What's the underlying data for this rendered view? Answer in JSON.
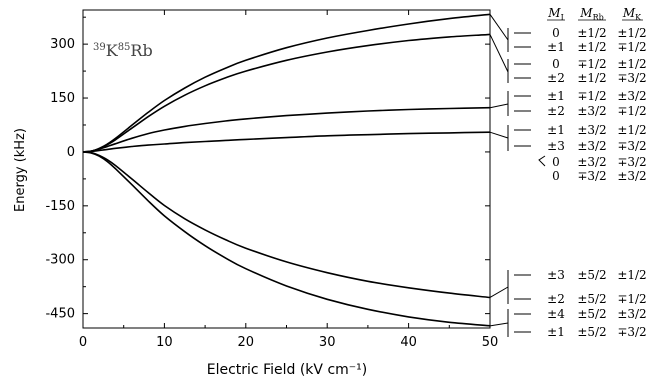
{
  "chart_data": {
    "type": "line",
    "xlabel": "Electric Field (kV cm⁻¹)",
    "ylabel": "Energy (kHz)",
    "xlim": [
      0,
      50
    ],
    "ylim": [
      -490,
      395
    ],
    "xticks": [
      "0",
      "10",
      "20",
      "30",
      "40",
      "50"
    ],
    "yticks": [
      {
        "value": 300,
        "label": "300"
      },
      {
        "value": 150,
        "label": "150"
      },
      {
        "value": 0,
        "label": "0"
      },
      {
        "value": -150,
        "label": "-150"
      },
      {
        "value": -300,
        "label": "-300"
      },
      {
        "value": -450,
        "label": "-450"
      }
    ],
    "annotation": {
      "sup1": "39",
      "base1": "K",
      "sup2": "85",
      "base2": "Rb"
    },
    "x": [
      0,
      1,
      2,
      3,
      4,
      6,
      8,
      10,
      12.5,
      15,
      17.5,
      20,
      25,
      30,
      35,
      40,
      45,
      50
    ],
    "series": [
      {
        "values": [
          0,
          2,
          10,
          22,
          38,
          74,
          110,
          143,
          178,
          208,
          233,
          255,
          290,
          317,
          338,
          356,
          371,
          383
        ]
      },
      {
        "values": [
          0,
          2,
          9,
          20,
          34,
          66,
          98,
          127,
          158,
          184,
          206,
          225,
          255,
          278,
          296,
          310,
          320,
          327
        ]
      },
      {
        "values": [
          0,
          2,
          8,
          15,
          23,
          38,
          51,
          61,
          71,
          79,
          86,
          92,
          101,
          108,
          114,
          118,
          121,
          123
        ]
      },
      {
        "values": [
          0,
          1,
          4,
          7,
          10,
          15,
          19,
          22,
          26,
          29,
          32,
          35,
          40,
          45,
          48,
          51,
          53,
          55
        ]
      },
      {
        "values": [
          0,
          -2,
          -10,
          -22,
          -38,
          -75,
          -113,
          -149,
          -186,
          -217,
          -244,
          -268,
          -306,
          -336,
          -360,
          -378,
          -393,
          -405
        ]
      },
      {
        "values": [
          0,
          -3,
          -12,
          -27,
          -47,
          -91,
          -136,
          -178,
          -222,
          -261,
          -295,
          -325,
          -373,
          -410,
          -438,
          -459,
          -474,
          -484
        ]
      }
    ],
    "states": {
      "headers": [
        "M_I",
        "M_Rb",
        "M_K"
      ],
      "rows": [
        [
          "0",
          "±1/2",
          "±1/2"
        ],
        [
          "±1",
          "±1/2",
          "∓1/2"
        ],
        [
          "0",
          "∓1/2",
          "±1/2"
        ],
        [
          "±2",
          "±1/2",
          "∓3/2"
        ],
        [
          "±1",
          "∓1/2",
          "±3/2"
        ],
        [
          "±2",
          "±3/2",
          "∓1/2"
        ],
        [
          "±1",
          "±3/2",
          "±1/2"
        ],
        [
          "±3",
          "±3/2",
          "∓3/2"
        ],
        [
          "0",
          "±3/2",
          "∓3/2"
        ],
        [
          "0",
          "∓3/2",
          "±3/2"
        ],
        [
          "±3",
          "±5/2",
          "±1/2"
        ],
        [
          "±2",
          "±5/2",
          "∓1/2"
        ],
        [
          "±4",
          "±5/2",
          "±3/2"
        ],
        [
          "±1",
          "±5/2",
          "∓3/2"
        ]
      ]
    }
  }
}
